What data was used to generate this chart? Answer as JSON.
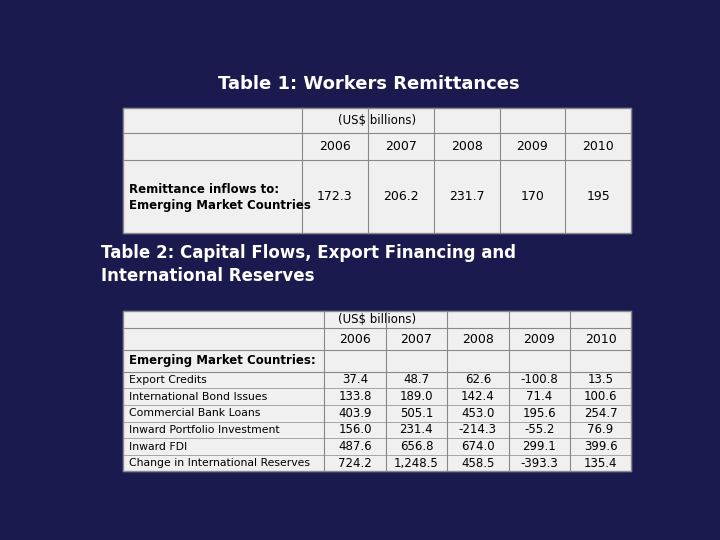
{
  "bg_color": "#1a1a4e",
  "table1_title": "Table 1: Workers Remittances",
  "table1_subtitle": "(US$ billions)",
  "table1_years": [
    "2006",
    "2007",
    "2008",
    "2009",
    "2010"
  ],
  "table1_values": [
    "172.3",
    "206.2",
    "231.7",
    "170",
    "195"
  ],
  "table2_title": "Table 2: Capital Flows, Export Financing and\nInternational Reserves",
  "table2_subtitle": "(US$ billions)",
  "table2_years": [
    "2006",
    "2007",
    "2008",
    "2009",
    "2010"
  ],
  "table2_section_label": "Emerging Market Countries:",
  "table2_rows": [
    [
      "Export Credits",
      "37.4",
      "48.7",
      "62.6",
      "-100.8",
      "13.5"
    ],
    [
      "International Bond Issues",
      "133.8",
      "189.0",
      "142.4",
      "71.4",
      "100.6"
    ],
    [
      "Commercial Bank Loans",
      "403.9",
      "505.1",
      "453.0",
      "195.6",
      "254.7"
    ],
    [
      "Inward Portfolio Investment",
      "156.0",
      "231.4",
      "-214.3",
      "-55.2",
      "76.9"
    ],
    [
      "Inward FDI",
      "487.6",
      "656.8",
      "674.0",
      "299.1",
      "399.6"
    ],
    [
      "Change in International Reserves",
      "724.2",
      "1,248.5",
      "458.5",
      "-393.3",
      "135.4"
    ]
  ],
  "table_bg": "#f0f0f0",
  "table_line_color": "#888888",
  "title1_color": "#ffffff",
  "title2_color": "#ffffff"
}
